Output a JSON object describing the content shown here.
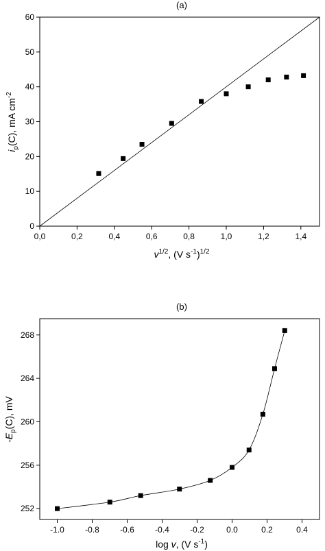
{
  "chart_data": [
    {
      "type": "scatter",
      "panel_label": "(a)",
      "xlabel": {
        "main": "v",
        "sup1": "1/2",
        "mid": ", (V s",
        "sup2": "-1",
        "end": ")",
        "sup3": "1/2"
      },
      "ylabel": {
        "main": "i",
        "sub": "p",
        "mid": "(C), mA cm",
        "sup": "-2"
      },
      "xlim": [
        0,
        1.5
      ],
      "ylim": [
        0,
        60
      ],
      "xticks": [
        "0,0",
        "0,2",
        "0,4",
        "0,6",
        "0,8",
        "1,0",
        "1,2",
        "1,4"
      ],
      "xtick_values": [
        0,
        0.2,
        0.4,
        0.6,
        0.8,
        1.0,
        1.2,
        1.4
      ],
      "yticks": [
        "0",
        "10",
        "20",
        "30",
        "40",
        "50",
        "60"
      ],
      "ytick_values": [
        0,
        10,
        20,
        30,
        40,
        50,
        60
      ],
      "points": {
        "x": [
          0.316,
          0.447,
          0.548,
          0.707,
          0.866,
          1.0,
          1.118,
          1.225,
          1.323,
          1.414
        ],
        "y": [
          15.1,
          19.4,
          23.5,
          29.5,
          35.8,
          38.0,
          40.0,
          42.0,
          42.8,
          43.2
        ]
      },
      "line": {
        "x": [
          0,
          1.5
        ],
        "y": [
          0,
          60
        ]
      }
    },
    {
      "type": "scatter",
      "panel_label": "(b)",
      "xlabel": {
        "main": "log ",
        "italic": "v",
        "mid": ", (V s",
        "sup": "-1",
        "end": ")"
      },
      "ylabel": {
        "main": "-E",
        "sub": "p",
        "mid": "(C), mV"
      },
      "xlim": [
        -1.1,
        0.5
      ],
      "ylim": [
        251,
        269.5
      ],
      "xticks": [
        "-1.0",
        "-0.8",
        "-0.6",
        "-0.4",
        "-0.2",
        "0.0",
        "0.2",
        "0.4"
      ],
      "xtick_values": [
        -1.0,
        -0.8,
        -0.6,
        -0.4,
        -0.2,
        0.0,
        0.2,
        0.4
      ],
      "yticks": [
        "252",
        "256",
        "260",
        "264",
        "268"
      ],
      "ytick_values": [
        252,
        256,
        260,
        264,
        268
      ],
      "points": {
        "x": [
          -1.0,
          -0.699,
          -0.523,
          -0.301,
          -0.125,
          0.0,
          0.097,
          0.176,
          0.243,
          0.301
        ],
        "y": [
          252.0,
          252.6,
          253.2,
          253.8,
          254.6,
          255.8,
          257.4,
          260.7,
          264.9,
          268.4
        ]
      }
    }
  ]
}
